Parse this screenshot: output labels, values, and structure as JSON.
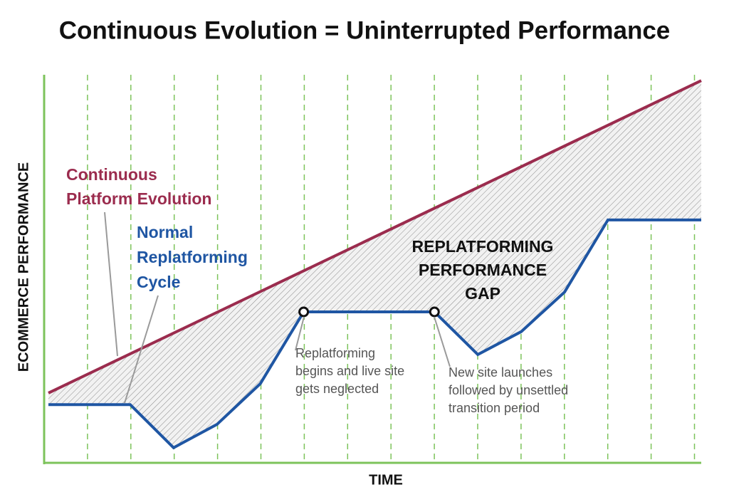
{
  "chart_data": {
    "type": "line",
    "title": "Continuous Evolution = Uninterrupted Performance",
    "x_label": "TIME",
    "y_label": "ECOMMERCE PERFORMANCE",
    "xlim": [
      0,
      100
    ],
    "ylim": [
      0,
      100
    ],
    "grid": true,
    "series": [
      {
        "name": [
          "Continuous",
          "Platform Evolution"
        ],
        "color": "#9b2c4e",
        "x": [
          0.65,
          100
        ],
        "values": [
          18.0,
          98.5
        ]
      },
      {
        "name": [
          "Normal",
          "Replatforming",
          "Cycle"
        ],
        "color": "#1f56a3",
        "x": [
          0.65,
          13.1,
          19.7,
          26.3,
          32.9,
          39.5,
          59.4,
          66.0,
          72.6,
          79.2,
          85.8,
          100
        ],
        "values": [
          15.0,
          15.0,
          3.9,
          9.9,
          20.4,
          38.9,
          38.9,
          27.9,
          33.8,
          44.0,
          62.6,
          62.6
        ]
      }
    ],
    "annotations": [
      {
        "lines": [
          "REPLATFORMING",
          "PERFORMANCE",
          "GAP"
        ]
      },
      {
        "lines": [
          "Replatforming",
          "begins and live site",
          "gets neglected"
        ]
      },
      {
        "lines": [
          "New site launches",
          "followed by unsettled",
          "transition period"
        ]
      }
    ]
  }
}
